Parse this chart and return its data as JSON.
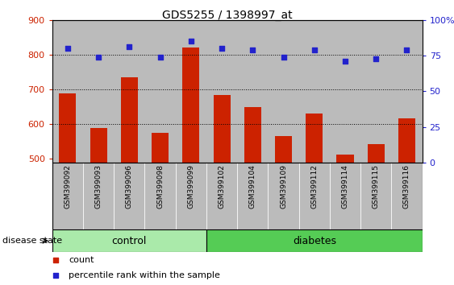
{
  "title": "GDS5255 / 1398997_at",
  "samples": [
    "GSM399092",
    "GSM399093",
    "GSM399096",
    "GSM399098",
    "GSM399099",
    "GSM399102",
    "GSM399104",
    "GSM399109",
    "GSM399112",
    "GSM399114",
    "GSM399115",
    "GSM399116"
  ],
  "counts": [
    688,
    590,
    735,
    575,
    820,
    683,
    650,
    565,
    630,
    513,
    542,
    618
  ],
  "percentiles": [
    80,
    74,
    81,
    74,
    85,
    80,
    79,
    74,
    79,
    71,
    73,
    79
  ],
  "ylim_left": [
    490,
    900
  ],
  "ylim_right": [
    0,
    100
  ],
  "yticks_left": [
    500,
    600,
    700,
    800,
    900
  ],
  "yticks_right": [
    0,
    25,
    50,
    75,
    100
  ],
  "bar_color": "#cc2200",
  "dot_color": "#2222cc",
  "bg_color": "#ffffff",
  "tick_bg": "#bbbbbb",
  "control_color": "#aaeaaa",
  "diabetes_color": "#55cc55",
  "n_control": 5,
  "n_diabetes": 7,
  "label_count": "count",
  "label_percentile": "percentile rank within the sample",
  "group_label": "disease state",
  "group_control": "control",
  "group_diabetes": "diabetes"
}
